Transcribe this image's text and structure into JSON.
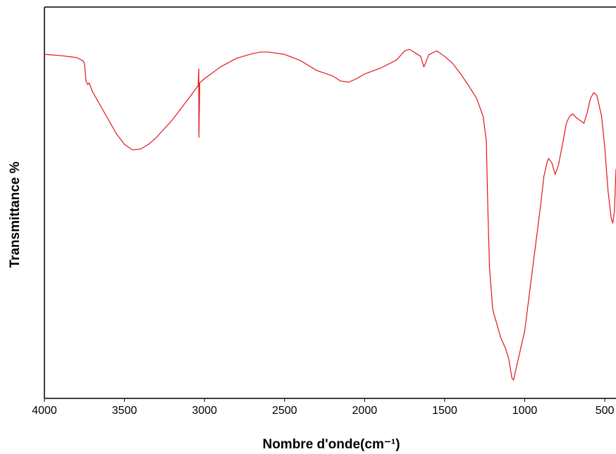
{
  "chart_data": {
    "type": "line",
    "xlabel": "Nombre d'onde(cm⁻¹)",
    "ylabel": "Transmittance %",
    "x": [
      4000,
      3900,
      3800,
      3760,
      3750,
      3740,
      3730,
      3720,
      3700,
      3650,
      3600,
      3550,
      3500,
      3450,
      3400,
      3350,
      3300,
      3200,
      3100,
      3040,
      3036,
      3035,
      3030,
      3000,
      2900,
      2800,
      2700,
      2650,
      2600,
      2500,
      2400,
      2300,
      2200,
      2150,
      2100,
      2050,
      2000,
      1900,
      1800,
      1750,
      1720,
      1700,
      1650,
      1630,
      1620,
      1600,
      1550,
      1500,
      1450,
      1400,
      1350,
      1300,
      1260,
      1240,
      1230,
      1220,
      1200,
      1150,
      1120,
      1100,
      1080,
      1070,
      1050,
      1000,
      950,
      900,
      880,
      860,
      850,
      830,
      810,
      790,
      760,
      740,
      720,
      700,
      680,
      650,
      630,
      610,
      590,
      570,
      550,
      520,
      500,
      480,
      460,
      450,
      440,
      430
    ],
    "series": [
      {
        "color": "#e3141b",
        "values": [
          87.9,
          87.6,
          87.1,
          86.3,
          85.6,
          81.1,
          80.2,
          80.6,
          78.4,
          74.8,
          71.2,
          67.6,
          64.9,
          63.5,
          63.7,
          64.9,
          66.7,
          71.2,
          76.6,
          79.9,
          84.2,
          66.7,
          80.6,
          81.7,
          84.7,
          86.9,
          88.1,
          88.5,
          88.5,
          87.9,
          86.3,
          83.8,
          82.4,
          81.1,
          80.8,
          81.7,
          82.9,
          84.4,
          86.5,
          88.8,
          89.2,
          88.7,
          87.4,
          84.7,
          85.6,
          87.8,
          88.8,
          87.4,
          85.6,
          82.9,
          79.9,
          76.6,
          72.1,
          65.8,
          47.8,
          33.5,
          22.7,
          15.5,
          12.8,
          10.1,
          5.2,
          4.7,
          8.3,
          17.3,
          33.5,
          49.6,
          56.8,
          60.4,
          61.3,
          60.1,
          57.2,
          59.5,
          65.8,
          70.3,
          72.1,
          72.7,
          71.8,
          70.9,
          70.3,
          73.0,
          76.6,
          78.1,
          77.5,
          72.1,
          64.0,
          53.2,
          46.0,
          44.8,
          47.8,
          58.6
        ]
      }
    ],
    "xlim": [
      4000,
      430
    ],
    "xticks": [
      4000,
      3500,
      3000,
      2500,
      2000,
      1500,
      1000,
      500
    ],
    "ylim": [
      0,
      100
    ]
  }
}
